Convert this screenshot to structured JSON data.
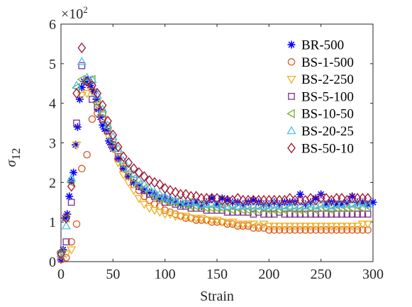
{
  "chart_data": {
    "type": "scatter",
    "xlabel": "Strain",
    "ylabel": "σ",
    "ylabel_subscript": "12",
    "y_exponent": "×10",
    "y_exponent_power": "2",
    "xlim": [
      0,
      300
    ],
    "ylim": [
      0,
      6
    ],
    "x_ticks": [
      0,
      50,
      100,
      150,
      200,
      250,
      300
    ],
    "y_ticks": [
      0,
      1,
      2,
      3,
      4,
      5,
      6
    ],
    "grid": false,
    "legend_position": "top-right",
    "series": [
      {
        "name": "BR-500",
        "marker": "asterisk",
        "color": "#0000FF",
        "x": [
          0,
          2,
          4,
          6,
          8,
          10,
          12,
          14,
          16,
          18,
          20,
          22,
          24,
          26,
          28,
          30,
          32,
          34,
          36,
          38,
          40,
          42,
          44,
          46,
          48,
          50,
          55,
          60,
          65,
          70,
          75,
          80,
          85,
          90,
          95,
          100,
          105,
          110,
          115,
          120,
          125,
          130,
          135,
          140,
          145,
          150,
          155,
          160,
          165,
          170,
          175,
          180,
          185,
          190,
          195,
          200,
          205,
          210,
          215,
          220,
          225,
          230,
          235,
          240,
          245,
          250,
          255,
          260,
          265,
          270,
          275,
          280,
          285,
          290,
          295,
          300
        ],
        "y": [
          0.05,
          0.3,
          1.1,
          1.2,
          1.65,
          2.05,
          2.25,
          2.95,
          3.4,
          4.1,
          4.4,
          4.55,
          4.55,
          4.6,
          4.45,
          4.35,
          4.3,
          4.1,
          3.85,
          3.65,
          3.45,
          3.35,
          3.3,
          3.05,
          2.95,
          2.85,
          2.6,
          2.35,
          2.15,
          2.0,
          1.9,
          1.8,
          1.75,
          1.7,
          1.6,
          1.6,
          1.55,
          1.5,
          1.45,
          1.45,
          1.45,
          1.5,
          1.4,
          1.5,
          1.6,
          1.45,
          1.6,
          1.55,
          1.5,
          1.5,
          1.45,
          1.5,
          1.55,
          1.5,
          1.45,
          1.45,
          1.5,
          1.45,
          1.5,
          1.5,
          1.5,
          1.7,
          1.45,
          1.5,
          1.6,
          1.7,
          1.45,
          1.5,
          1.45,
          1.45,
          1.5,
          1.65,
          1.5,
          1.5,
          1.45,
          1.5
        ]
      },
      {
        "name": "BS-1-500",
        "marker": "circle",
        "color": "#D95319",
        "x": [
          0,
          5,
          10,
          15,
          20,
          25,
          30,
          35,
          40,
          45,
          50,
          55,
          60,
          65,
          70,
          75,
          80,
          85,
          90,
          95,
          100,
          105,
          110,
          115,
          120,
          125,
          130,
          135,
          140,
          145,
          150,
          155,
          160,
          165,
          170,
          175,
          180,
          185,
          190,
          195,
          200,
          205,
          210,
          215,
          220,
          225,
          230,
          235,
          240,
          245,
          250,
          255,
          260,
          265,
          270,
          275,
          280,
          285,
          290,
          295
        ],
        "y": [
          0.05,
          0.1,
          0.5,
          0.95,
          2.35,
          2.7,
          3.6,
          3.75,
          3.75,
          3.35,
          2.95,
          2.6,
          2.35,
          2.15,
          1.95,
          1.8,
          1.65,
          1.55,
          1.45,
          1.4,
          1.3,
          1.25,
          1.2,
          1.15,
          1.1,
          1.1,
          1.05,
          1.05,
          1.05,
          1.0,
          1.0,
          1.0,
          0.95,
          0.95,
          0.9,
          0.9,
          0.9,
          0.85,
          0.85,
          0.85,
          0.8,
          0.8,
          0.8,
          0.8,
          0.8,
          0.8,
          0.8,
          0.8,
          0.8,
          0.8,
          0.8,
          0.8,
          0.8,
          0.8,
          0.8,
          0.8,
          0.8,
          0.8,
          0.8,
          0.8
        ]
      },
      {
        "name": "BS-2-250",
        "marker": "triangle-down",
        "color": "#EDB120",
        "x": [
          0,
          5,
          10,
          15,
          20,
          25,
          30,
          35,
          40,
          45,
          50,
          55,
          60,
          65,
          70,
          75,
          80,
          85,
          90,
          95,
          100,
          105,
          110,
          115,
          120,
          125,
          130,
          135,
          140,
          145,
          150,
          155,
          160,
          165,
          170,
          175,
          180,
          185,
          190,
          195,
          200,
          205,
          210,
          215,
          220,
          225,
          230,
          235,
          240,
          245,
          250,
          255,
          260,
          265,
          270,
          275,
          280,
          285,
          290,
          295
        ],
        "y": [
          0.15,
          0.2,
          0.3,
          2.95,
          4.2,
          4.25,
          4.3,
          3.95,
          3.6,
          3.2,
          2.85,
          2.5,
          2.2,
          2.0,
          1.8,
          1.6,
          1.45,
          1.35,
          1.3,
          1.25,
          1.2,
          1.2,
          1.15,
          1.15,
          1.15,
          1.1,
          1.1,
          1.1,
          1.05,
          1.05,
          1.05,
          1.0,
          1.0,
          1.0,
          0.95,
          0.95,
          0.95,
          0.95,
          0.9,
          0.95,
          0.9,
          0.9,
          0.9,
          0.9,
          0.9,
          0.9,
          0.9,
          0.9,
          0.9,
          0.9,
          0.9,
          0.9,
          0.9,
          0.9,
          0.9,
          0.9,
          0.9,
          0.9,
          0.95,
          0.95
        ]
      },
      {
        "name": "BS-5-100",
        "marker": "square",
        "color": "#7E2F8E",
        "x": [
          0,
          5,
          10,
          15,
          20,
          25,
          30,
          35,
          40,
          45,
          50,
          55,
          60,
          65,
          70,
          75,
          80,
          85,
          90,
          95,
          100,
          105,
          110,
          115,
          120,
          125,
          130,
          135,
          140,
          145,
          150,
          155,
          160,
          165,
          170,
          175,
          180,
          185,
          190,
          195,
          200,
          205,
          210,
          215,
          220,
          225,
          230,
          235,
          240,
          245,
          250,
          255,
          260,
          265,
          270,
          275,
          280,
          285,
          290,
          295
        ],
        "y": [
          0.2,
          0.5,
          1.5,
          3.5,
          4.95,
          4.55,
          4.1,
          3.9,
          3.6,
          3.3,
          2.95,
          2.65,
          2.4,
          2.2,
          2.05,
          1.9,
          1.8,
          1.7,
          1.65,
          1.6,
          1.5,
          1.5,
          1.45,
          1.4,
          1.4,
          1.35,
          1.35,
          1.35,
          1.3,
          1.3,
          1.3,
          1.3,
          1.25,
          1.25,
          1.25,
          1.25,
          1.25,
          1.2,
          1.25,
          1.2,
          1.2,
          1.2,
          1.25,
          1.2,
          1.2,
          1.2,
          1.2,
          1.2,
          1.2,
          1.2,
          1.2,
          1.2,
          1.2,
          1.2,
          1.2,
          1.2,
          1.2,
          1.2,
          1.2,
          1.2
        ]
      },
      {
        "name": "BS-10-50",
        "marker": "triangle-left",
        "color": "#77AC30",
        "x": [
          0,
          5,
          10,
          15,
          20,
          25,
          30,
          35,
          40,
          45,
          50,
          55,
          60,
          65,
          70,
          75,
          80,
          85,
          90,
          95,
          100,
          105,
          110,
          115,
          120,
          125,
          130,
          135,
          140,
          145,
          150,
          155,
          160,
          165,
          170,
          175,
          180,
          185,
          190,
          195,
          200,
          205,
          210,
          215,
          220,
          225,
          230,
          235,
          240,
          245,
          250,
          255,
          260,
          265,
          270,
          275,
          280,
          285,
          290,
          295
        ],
        "y": [
          0.25,
          1.1,
          2.0,
          4.4,
          4.6,
          4.55,
          4.6,
          4.0,
          3.75,
          3.4,
          3.05,
          2.75,
          2.45,
          2.25,
          2.1,
          1.95,
          1.85,
          1.75,
          1.65,
          1.6,
          1.55,
          1.5,
          1.5,
          1.45,
          1.45,
          1.4,
          1.4,
          1.4,
          1.35,
          1.35,
          1.35,
          1.35,
          1.35,
          1.3,
          1.35,
          1.3,
          1.3,
          1.3,
          1.3,
          1.35,
          1.3,
          1.3,
          1.3,
          1.3,
          1.35,
          1.3,
          1.3,
          1.3,
          1.35,
          1.3,
          1.35,
          1.35,
          1.3,
          1.35,
          1.35,
          1.35,
          1.35,
          1.4,
          1.35,
          1.4
        ]
      },
      {
        "name": "BS-20-25",
        "marker": "triangle-up",
        "color": "#4DBEEE",
        "x": [
          0,
          5,
          10,
          15,
          20,
          25,
          30,
          35,
          40,
          45,
          50,
          55,
          60,
          65,
          70,
          75,
          80,
          85,
          90,
          95,
          100,
          105,
          110,
          115,
          120,
          125,
          130,
          135,
          140,
          145,
          150,
          155,
          160,
          165,
          170,
          175,
          180,
          185,
          190,
          195,
          200,
          205,
          210,
          215,
          220,
          225,
          230,
          235,
          240,
          245,
          250,
          255,
          260,
          265,
          270,
          275,
          280,
          285,
          290,
          295
        ],
        "y": [
          0.2,
          0.9,
          2.1,
          4.45,
          5.05,
          4.65,
          4.6,
          4.2,
          3.85,
          3.45,
          3.15,
          2.85,
          2.55,
          2.35,
          2.2,
          2.05,
          1.95,
          1.85,
          1.75,
          1.7,
          1.65,
          1.6,
          1.55,
          1.55,
          1.5,
          1.5,
          1.5,
          1.45,
          1.45,
          1.45,
          1.45,
          1.4,
          1.4,
          1.45,
          1.4,
          1.4,
          1.4,
          1.4,
          1.4,
          1.4,
          1.4,
          1.45,
          1.4,
          1.4,
          1.4,
          1.4,
          1.4,
          1.4,
          1.45,
          1.4,
          1.45,
          1.45,
          1.4,
          1.45,
          1.45,
          1.45,
          1.45,
          1.45,
          1.5,
          1.45
        ]
      },
      {
        "name": "BS-50-10",
        "marker": "diamond",
        "color": "#A2142F",
        "x": [
          0,
          5,
          10,
          15,
          20,
          25,
          30,
          35,
          40,
          45,
          50,
          55,
          60,
          65,
          70,
          75,
          80,
          85,
          90,
          95,
          100,
          105,
          110,
          115,
          120,
          125,
          130,
          135,
          140,
          145,
          150,
          155,
          160,
          165,
          170,
          175,
          180,
          185,
          190,
          195,
          200,
          205,
          210,
          215,
          220,
          225,
          230,
          235,
          240,
          245,
          250,
          255,
          260,
          265,
          270,
          275,
          280,
          285,
          290,
          295
        ],
        "y": [
          0.2,
          1.1,
          1.9,
          4.25,
          5.4,
          4.55,
          4.45,
          4.25,
          3.95,
          3.55,
          3.2,
          2.9,
          2.65,
          2.5,
          2.35,
          2.25,
          2.15,
          2.05,
          2.0,
          1.95,
          1.85,
          1.8,
          1.75,
          1.7,
          1.7,
          1.65,
          1.65,
          1.6,
          1.6,
          1.6,
          1.6,
          1.55,
          1.55,
          1.55,
          1.6,
          1.55,
          1.55,
          1.55,
          1.55,
          1.55,
          1.55,
          1.55,
          1.55,
          1.55,
          1.6,
          1.55,
          1.55,
          1.55,
          1.6,
          1.55,
          1.6,
          1.6,
          1.55,
          1.6,
          1.6,
          1.55,
          1.6,
          1.6,
          1.6,
          1.6
        ]
      }
    ]
  }
}
